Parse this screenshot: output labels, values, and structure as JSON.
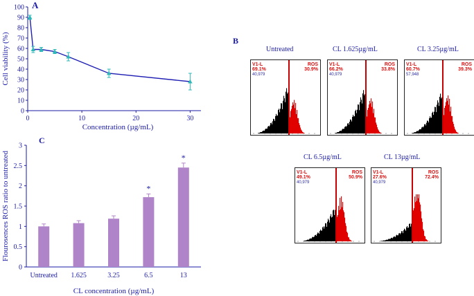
{
  "chart_data": [
    {
      "panel": "A",
      "type": "line",
      "xlabel": "Concentration (µg/mL)",
      "ylabel": "Cell viability (%)",
      "xlim": [
        0,
        32
      ],
      "ylim": [
        0,
        100
      ],
      "xticks": [
        "0",
        "10",
        "20",
        "30"
      ],
      "yticks": [
        "0",
        "10",
        "20",
        "30",
        "40",
        "50",
        "60",
        "70",
        "80",
        "90",
        "100"
      ],
      "x": [
        0.4,
        1.0,
        2.5,
        5.0,
        7.5,
        15.0,
        30.0
      ],
      "values": [
        90,
        59,
        59,
        57,
        52,
        36,
        28
      ],
      "errors": [
        2,
        3,
        2,
        2,
        4,
        4,
        8
      ],
      "line_color": "#1f1fb4",
      "marker_color": "#2fb8b8"
    },
    {
      "panel": "C",
      "type": "bar",
      "xlabel": "CL concentration (µg/mL)",
      "ylabel": "Flourosences ROS ratio to untreated",
      "categories": [
        "Untreated",
        "1.625",
        "3.25",
        "6.5",
        "13"
      ],
      "values": [
        1.0,
        1.08,
        1.19,
        1.72,
        2.45
      ],
      "errors": [
        0.06,
        0.06,
        0.07,
        0.08,
        0.11
      ],
      "significance": [
        "",
        "",
        "",
        "*",
        "*"
      ],
      "ylim": [
        0,
        3
      ],
      "yticks": [
        "0",
        "0.5",
        "1",
        "1.5",
        "2",
        "2.5",
        "3"
      ],
      "bar_color": "#b084c8"
    }
  ],
  "labels": {
    "a": "A",
    "b": "B",
    "c": "C"
  },
  "flow_panels": [
    {
      "title": "Untreated",
      "gate_left": "V1-L",
      "gate_left_pct": "69.1%",
      "events": "40,979",
      "gate_right": "ROS",
      "gate_right_pct": "30.9%",
      "ros_fraction": 0.309
    },
    {
      "title": "CL 1.625µg/mL",
      "gate_left": "V1-L",
      "gate_left_pct": "66.2%",
      "events": "40,979",
      "gate_right": "ROS",
      "gate_right_pct": "33.8%",
      "ros_fraction": 0.338
    },
    {
      "title": "CL 3.25µg/mL",
      "gate_left": "V1-L",
      "gate_left_pct": "60.7%",
      "events": "57,948",
      "gate_right": "ROS",
      "gate_right_pct": "39.3%",
      "ros_fraction": 0.393
    },
    {
      "title": "CL 6.5µg/mL",
      "gate_left": "V1-L",
      "gate_left_pct": "49.1%",
      "events": "40,979",
      "gate_right": "ROS",
      "gate_right_pct": "50.9%",
      "ros_fraction": 0.509
    },
    {
      "title": "CL 13µg/mL",
      "gate_left": "V1-L",
      "gate_left_pct": "27.6%",
      "events": "40,979",
      "gate_right": "ROS",
      "gate_right_pct": "72.4%",
      "ros_fraction": 0.724
    }
  ],
  "colors": {
    "axis": "#1a1aa6",
    "negative": "#000000",
    "positive": "#e00000",
    "gate": "#c80000"
  }
}
